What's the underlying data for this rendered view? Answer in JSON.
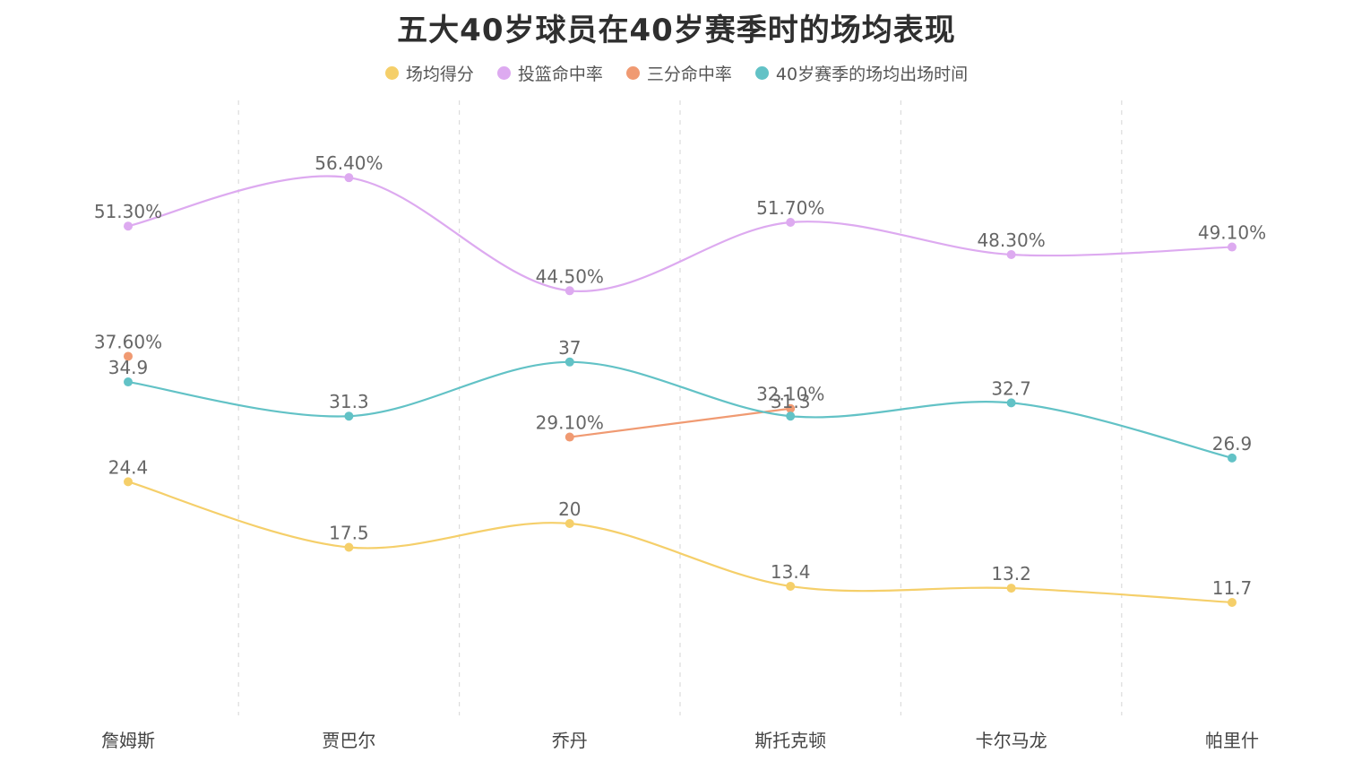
{
  "chart_data": {
    "type": "line",
    "title": "五大40岁球员在40岁赛季时的场均表现",
    "categories": [
      "詹姆斯",
      "贾巴尔",
      "乔丹",
      "斯托克顿",
      "卡尔马龙",
      "帕里什"
    ],
    "legend_position": "top-center",
    "grid": "vertical-dashed",
    "series": [
      {
        "name": "场均得分",
        "color": "#f5cf6a",
        "values": [
          24.4,
          17.5,
          20,
          13.4,
          13.2,
          11.7
        ],
        "labels": [
          "24.4",
          "17.5",
          "20",
          "13.4",
          "13.2",
          "11.7"
        ]
      },
      {
        "name": "投篮命中率",
        "color": "#ddaaf0",
        "values": [
          51.3,
          56.4,
          44.5,
          51.7,
          48.3,
          49.1
        ],
        "labels": [
          "51.30%",
          "56.40%",
          "44.50%",
          "51.70%",
          "48.30%",
          "49.10%"
        ]
      },
      {
        "name": "三分命中率",
        "color": "#f09a72",
        "values": [
          37.6,
          null,
          29.1,
          32.1,
          null,
          null
        ],
        "labels": [
          "37.60%",
          null,
          "29.10%",
          "32.10%",
          null,
          null
        ]
      },
      {
        "name": "40岁赛季的场均出场时间",
        "color": "#62c2c6",
        "values": [
          34.9,
          31.3,
          37,
          31.3,
          32.7,
          26.9
        ],
        "labels": [
          "34.9",
          "31.3",
          "37",
          "31.3",
          "32.7",
          "26.9"
        ]
      }
    ]
  }
}
